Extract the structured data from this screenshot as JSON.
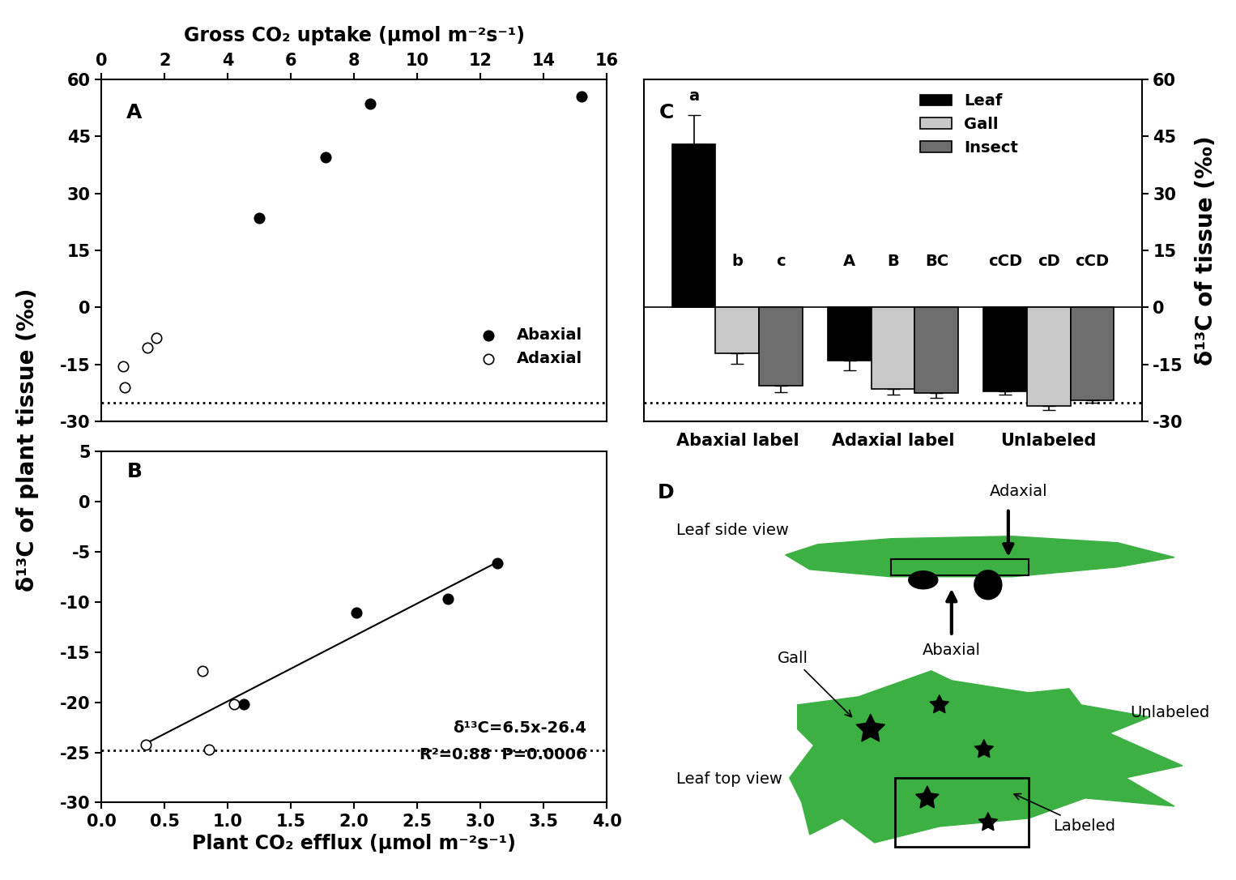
{
  "chart_data": [
    {
      "type": "scatter",
      "title": "A",
      "x_label": "Gross CO₂ uptake (μmol m⁻²s⁻¹)",
      "y_label": "δ¹³C of plant tissue (‰)",
      "xlim": [
        0,
        16
      ],
      "xticks": [
        0,
        2,
        4,
        6,
        8,
        10,
        12,
        14,
        16
      ],
      "ylim": [
        -30,
        60
      ],
      "yticks": [
        -30,
        -15,
        0,
        15,
        30,
        45,
        60
      ],
      "reference_line": -25,
      "legend": "lower right",
      "series": [
        {
          "name": "Abaxial",
          "color": "#000000",
          "marker": "o",
          "x": [
            5.0,
            7.1,
            8.5,
            15.2
          ],
          "values": [
            23.5,
            39.5,
            53.5,
            55.5
          ]
        },
        {
          "name": "Adaxial",
          "color": "#ffffff",
          "marker": "o",
          "x": [
            0.7,
            0.75,
            1.45,
            1.75
          ],
          "values": [
            -15.5,
            -21.0,
            -10.5,
            -8.0
          ]
        }
      ]
    },
    {
      "type": "scatter",
      "title": "B",
      "x_label": "Plant CO₂ efflux (μmol m⁻²s⁻¹)",
      "xlim": [
        0,
        4
      ],
      "xticks": [
        {
          "value": 0,
          "label": "0.0"
        },
        0.5,
        {
          "value": 1,
          "label": "1.0"
        },
        1.5,
        {
          "value": 2,
          "label": "2.0"
        },
        2.5,
        {
          "value": 3,
          "label": "3.0"
        },
        3.5,
        {
          "value": 4,
          "label": "4.0"
        }
      ],
      "ylim": [
        -30,
        5
      ],
      "yticks": [
        -30,
        -25,
        -20,
        -15,
        -10,
        -5,
        0,
        5
      ],
      "reference_line": -24.8,
      "fit": {
        "slope": 6.5,
        "intercept": -26.4,
        "x": [
          0.35,
          3.13
        ]
      },
      "annotations": [
        "δ¹³C=6.5x-26.4",
        "R²=0.88  P=0.0006"
      ],
      "series": [
        {
          "color": "#000000",
          "marker": "o",
          "x": [
            1.13,
            2.02,
            2.74,
            3.13
          ],
          "values": [
            -20.2,
            -11.1,
            -9.7,
            -6.1
          ]
        },
        {
          "color": "#ffffff",
          "marker": "o",
          "x": [
            0.35,
            0.8,
            0.85,
            1.05
          ],
          "values": [
            -24.2,
            -16.9,
            -24.7,
            -20.2
          ]
        }
      ]
    },
    {
      "type": "bar",
      "title": "C",
      "y_label": "δ¹³C of tissue (‰)",
      "categories": [
        "Abaxial label",
        "Adaxial label",
        "Unlabeled"
      ],
      "ylim": [
        -30,
        60
      ],
      "yticks": [
        -30,
        -15,
        0,
        15,
        30,
        45,
        60
      ],
      "reference_line": -25,
      "legend": "upper right",
      "series": [
        {
          "name": "Leaf",
          "color": "#000000",
          "values": [
            43,
            -14,
            -22
          ],
          "errors": [
            7.5,
            2.5,
            1.0
          ],
          "letters": [
            "a",
            "A",
            "cCD"
          ]
        },
        {
          "name": "Gall",
          "color": "#c8c8c8",
          "values": [
            -12,
            -21.5,
            -26
          ],
          "errors": [
            2.8,
            1.5,
            1.0
          ],
          "letters": [
            "b",
            "B",
            "cD"
          ]
        },
        {
          "name": "Insect",
          "color": "#6e6e6e",
          "values": [
            -20.5,
            -22.5,
            -24.5
          ],
          "errors": [
            1.8,
            1.2,
            0.5
          ],
          "letters": [
            "c",
            "BC",
            "cCD"
          ]
        }
      ]
    }
  ],
  "diagram": {
    "title": "D",
    "texts": {
      "side_view": "Leaf side view",
      "adaxial": "Adaxial",
      "abaxial": "Abaxial",
      "gall": "Gall",
      "unlabeled": "Unlabeled",
      "top_view": "Leaf top view",
      "labeled": "Labeled"
    }
  }
}
